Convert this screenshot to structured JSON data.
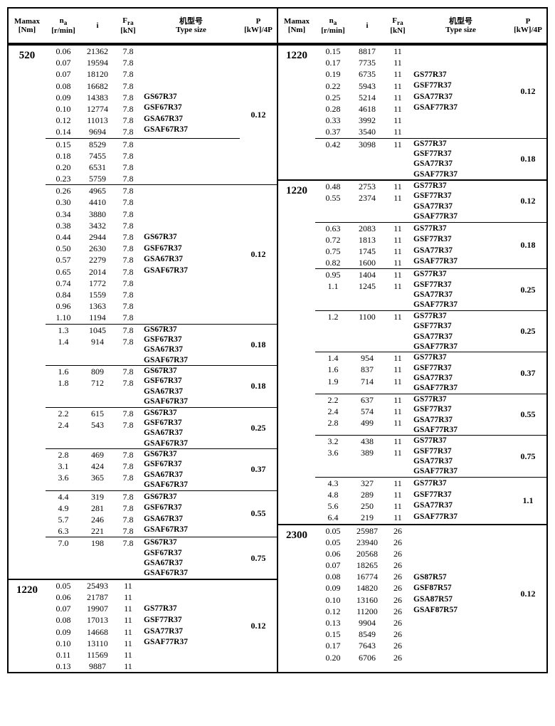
{
  "headers": {
    "mamax_l1": "Mamax",
    "mamax_l2": "[Nm]",
    "na_l1": "n",
    "na_sub": "a",
    "na_l2": "[r/min]",
    "i": "i",
    "fra_l1": "F",
    "fra_sub": "ra",
    "fra_l2": "[kN]",
    "type_l1": "机型号",
    "type_l2": "Type size",
    "p_l1": "P",
    "p_l2": "[kW]/4P"
  },
  "left": [
    {
      "m": "520",
      "secs": [
        {
          "p": "0.12",
          "subs": [
            {
              "types": [
                "",
                "",
                "",
                "",
                "GS67R37",
                "GSF67R37",
                "GSA67R37",
                "GSAF67R37"
              ],
              "type_align": "match",
              "lines": [
                {
                  "n": "0.06",
                  "i": "21362",
                  "f": "7.8"
                },
                {
                  "n": "0.07",
                  "i": "19594",
                  "f": "7.8"
                },
                {
                  "n": "0.07",
                  "i": "18120",
                  "f": "7.8"
                },
                {
                  "n": "0.08",
                  "i": "16682",
                  "f": "7.8"
                },
                {
                  "n": "0.09",
                  "i": "14383",
                  "f": "7.8"
                },
                {
                  "n": "0.10",
                  "i": "12774",
                  "f": "7.8"
                },
                {
                  "n": "0.12",
                  "i": "11013",
                  "f": "7.8"
                },
                {
                  "n": "0.14",
                  "i": "9694",
                  "f": "7.8"
                }
              ]
            },
            {
              "types": [],
              "lines": [
                {
                  "n": "0.15",
                  "i": "8529",
                  "f": "7.8"
                },
                {
                  "n": "0.18",
                  "i": "7455",
                  "f": "7.8"
                },
                {
                  "n": "0.20",
                  "i": "6531",
                  "f": "7.8"
                },
                {
                  "n": "0.23",
                  "i": "5759",
                  "f": "7.8"
                }
              ]
            }
          ]
        },
        {
          "p": "0.12",
          "subs": [
            {
              "types": [
                "",
                "",
                "",
                "",
                "GS67R37",
                "GSF67R37",
                "GSA67R37",
                "GSAF67R37",
                "",
                "",
                "",
                ""
              ],
              "type_align": "match",
              "lines": [
                {
                  "n": "0.26",
                  "i": "4965",
                  "f": "7.8"
                },
                {
                  "n": "0.30",
                  "i": "4410",
                  "f": "7.8"
                },
                {
                  "n": "0.34",
                  "i": "3880",
                  "f": "7.8"
                },
                {
                  "n": "0.38",
                  "i": "3432",
                  "f": "7.8"
                },
                {
                  "n": "0.44",
                  "i": "2944",
                  "f": "7.8"
                },
                {
                  "n": "0.50",
                  "i": "2630",
                  "f": "7.8"
                },
                {
                  "n": "0.57",
                  "i": "2279",
                  "f": "7.8"
                },
                {
                  "n": "0.65",
                  "i": "2014",
                  "f": "7.8"
                },
                {
                  "n": "0.74",
                  "i": "1772",
                  "f": "7.8"
                },
                {
                  "n": "0.84",
                  "i": "1559",
                  "f": "7.8"
                },
                {
                  "n": "0.96",
                  "i": "1363",
                  "f": "7.8"
                },
                {
                  "n": "1.10",
                  "i": "1194",
                  "f": "7.8"
                }
              ]
            }
          ]
        },
        {
          "p": "0.18",
          "subs": [
            {
              "types": [
                "GS67R37",
                "GSF67R37",
                "GSA67R37",
                "GSAF67R37"
              ],
              "lines": [
                {
                  "n": "1.3",
                  "i": "1045",
                  "f": "7.8"
                },
                {
                  "n": "1.4",
                  "i": "914",
                  "f": "7.8"
                }
              ]
            }
          ]
        },
        {
          "p": "0.18",
          "subs": [
            {
              "types": [
                "GS67R37",
                "GSF67R37",
                "GSA67R37",
                "GSAF67R37"
              ],
              "lines": [
                {
                  "n": "1.6",
                  "i": "809",
                  "f": "7.8"
                },
                {
                  "n": "1.8",
                  "i": "712",
                  "f": "7.8"
                }
              ]
            }
          ]
        },
        {
          "p": "0.25",
          "subs": [
            {
              "types": [
                "GS67R37",
                "GSF67R37",
                "GSA67R37",
                "GSAF67R37"
              ],
              "lines": [
                {
                  "n": "2.2",
                  "i": "615",
                  "f": "7.8"
                },
                {
                  "n": "2.4",
                  "i": "543",
                  "f": "7.8"
                }
              ]
            }
          ]
        },
        {
          "p": "0.37",
          "subs": [
            {
              "types": [
                "GS67R37",
                "GSF67R37",
                "GSA67R37",
                "GSAF67R37"
              ],
              "lines": [
                {
                  "n": "2.8",
                  "i": "469",
                  "f": "7.8"
                },
                {
                  "n": "3.1",
                  "i": "424",
                  "f": "7.8"
                },
                {
                  "n": "3.6",
                  "i": "365",
                  "f": "7.8"
                }
              ]
            }
          ]
        },
        {
          "p": "0.55",
          "subs": [
            {
              "types": [
                "GS67R37",
                "GSF67R37",
                "GSA67R37",
                "GSAF67R37"
              ],
              "type_align": "match",
              "lines": [
                {
                  "n": "4.4",
                  "i": "319",
                  "f": "7.8"
                },
                {
                  "n": "4.9",
                  "i": "281",
                  "f": "7.8"
                },
                {
                  "n": "5.7",
                  "i": "246",
                  "f": "7.8"
                },
                {
                  "n": "6.3",
                  "i": "221",
                  "f": "7.8"
                }
              ]
            }
          ]
        },
        {
          "p": "0.75",
          "subs": [
            {
              "types": [
                "GS67R37",
                "GSF67R37",
                "GSA67R37",
                "GSAF67R37"
              ],
              "lines": [
                {
                  "n": "7.0",
                  "i": "198",
                  "f": "7.8"
                }
              ]
            }
          ]
        }
      ]
    },
    {
      "m": "1220",
      "secs": [
        {
          "p": "0.12",
          "subs": [
            {
              "types": [
                "",
                "",
                "GS77R37",
                "GSF77R37",
                "GSA77R37",
                "GSAF77R37",
                "",
                ""
              ],
              "type_align": "match",
              "lines": [
                {
                  "n": "0.05",
                  "i": "25493",
                  "f": "11"
                },
                {
                  "n": "0.06",
                  "i": "21787",
                  "f": "11"
                },
                {
                  "n": "0.07",
                  "i": "19907",
                  "f": "11"
                },
                {
                  "n": "0.08",
                  "i": "17013",
                  "f": "11"
                },
                {
                  "n": "0.09",
                  "i": "14668",
                  "f": "11"
                },
                {
                  "n": "0.10",
                  "i": "13110",
                  "f": "11"
                },
                {
                  "n": "0.11",
                  "i": "11569",
                  "f": "11"
                },
                {
                  "n": "0.13",
                  "i": "9887",
                  "f": "11"
                }
              ]
            }
          ]
        }
      ]
    }
  ],
  "right": [
    {
      "m": "1220",
      "secs": [
        {
          "p": "0.12",
          "subs": [
            {
              "types": [
                "",
                "",
                "GS77R37",
                "GSF77R37",
                "GSA77R37",
                "GSAF77R37",
                "",
                ""
              ],
              "type_align": "match",
              "lines": [
                {
                  "n": "0.15",
                  "i": "8817",
                  "f": "11"
                },
                {
                  "n": "0.17",
                  "i": "7735",
                  "f": "11"
                },
                {
                  "n": "0.19",
                  "i": "6735",
                  "f": "11"
                },
                {
                  "n": "0.22",
                  "i": "5943",
                  "f": "11"
                },
                {
                  "n": "0.25",
                  "i": "5214",
                  "f": "11"
                },
                {
                  "n": "0.28",
                  "i": "4618",
                  "f": "11"
                },
                {
                  "n": "0.33",
                  "i": "3992",
                  "f": "11"
                },
                {
                  "n": "0.37",
                  "i": "3540",
                  "f": "11"
                }
              ]
            }
          ]
        },
        {
          "p": "0.18",
          "subs": [
            {
              "types": [
                "GS77R37",
                "GSF77R37",
                "GSA77R37",
                "GSAF77R37"
              ],
              "lines": [
                {
                  "n": "0.42",
                  "i": "3098",
                  "f": "11"
                }
              ]
            }
          ]
        }
      ]
    },
    {
      "m": "1220",
      "secs": [
        {
          "p": "0.12",
          "subs": [
            {
              "types": [
                "GS77R37",
                "GSF77R37",
                "GSA77R37",
                "GSAF77R37"
              ],
              "lines": [
                {
                  "n": "0.48",
                  "i": "2753",
                  "f": "11"
                },
                {
                  "n": "0.55",
                  "i": "2374",
                  "f": "11"
                }
              ]
            }
          ]
        },
        {
          "p": "0.18",
          "subs": [
            {
              "types": [
                "GS77R37",
                "GSF77R37",
                "GSA77R37",
                "GSAF77R37"
              ],
              "type_align": "match",
              "lines": [
                {
                  "n": "0.63",
                  "i": "2083",
                  "f": "11"
                },
                {
                  "n": "0.72",
                  "i": "1813",
                  "f": "11"
                },
                {
                  "n": "0.75",
                  "i": "1745",
                  "f": "11"
                },
                {
                  "n": "0.82",
                  "i": "1600",
                  "f": "11"
                }
              ]
            }
          ]
        },
        {
          "p": "0.25",
          "subs": [
            {
              "types": [
                "GS77R37",
                "GSF77R37",
                "GSA77R37",
                "GSAF77R37"
              ],
              "lines": [
                {
                  "n": "0.95",
                  "i": "1404",
                  "f": "11"
                },
                {
                  "n": "1.1",
                  "i": "1245",
                  "f": "11"
                }
              ]
            }
          ]
        },
        {
          "p": "0.25",
          "subs": [
            {
              "types": [
                "GS77R37",
                "GSF77R37",
                "GSA77R37",
                "GSAF77R37"
              ],
              "lines": [
                {
                  "n": "1.2",
                  "i": "1100",
                  "f": "11"
                }
              ]
            }
          ]
        },
        {
          "p": "0.37",
          "subs": [
            {
              "types": [
                "GS77R37",
                "GSF77R37",
                "GSA77R37",
                "GSAF77R37"
              ],
              "lines": [
                {
                  "n": "1.4",
                  "i": "954",
                  "f": "11"
                },
                {
                  "n": "1.6",
                  "i": "837",
                  "f": "11"
                },
                {
                  "n": "1.9",
                  "i": "714",
                  "f": "11"
                }
              ]
            }
          ]
        },
        {
          "p": "0.55",
          "subs": [
            {
              "types": [
                "GS77R37",
                "GSF77R37",
                "GSA77R37",
                "GSAF77R37"
              ],
              "lines": [
                {
                  "n": "2.2",
                  "i": "637",
                  "f": "11"
                },
                {
                  "n": "2.4",
                  "i": "574",
                  "f": "11"
                },
                {
                  "n": "2.8",
                  "i": "499",
                  "f": "11"
                }
              ]
            }
          ]
        },
        {
          "p": "0.75",
          "subs": [
            {
              "types": [
                "GS77R37",
                "GSF77R37",
                "GSA77R37",
                "GSAF77R37"
              ],
              "lines": [
                {
                  "n": "3.2",
                  "i": "438",
                  "f": "11"
                },
                {
                  "n": "3.6",
                  "i": "389",
                  "f": "11"
                }
              ]
            }
          ]
        },
        {
          "p": "1.1",
          "subs": [
            {
              "types": [
                "GS77R37",
                "GSF77R37",
                "GSA77R37",
                "GSAF77R37"
              ],
              "type_align": "match",
              "lines": [
                {
                  "n": "4.3",
                  "i": "327",
                  "f": "11"
                },
                {
                  "n": "4.8",
                  "i": "289",
                  "f": "11"
                },
                {
                  "n": "5.6",
                  "i": "250",
                  "f": "11"
                },
                {
                  "n": "6.4",
                  "i": "219",
                  "f": "11"
                }
              ]
            }
          ]
        }
      ]
    },
    {
      "m": "2300",
      "secs": [
        {
          "p": "0.12",
          "subs": [
            {
              "types": [
                "",
                "",
                "",
                "",
                "GS87R57",
                "GSF87R57",
                "GSA87R57",
                "GSAF87R57",
                "",
                "",
                "",
                ""
              ],
              "type_align": "match",
              "lines": [
                {
                  "n": "0.05",
                  "i": "25987",
                  "f": "26"
                },
                {
                  "n": "0.05",
                  "i": "23940",
                  "f": "26"
                },
                {
                  "n": "0.06",
                  "i": "20568",
                  "f": "26"
                },
                {
                  "n": "0.07",
                  "i": "18265",
                  "f": "26"
                },
                {
                  "n": "0.08",
                  "i": "16774",
                  "f": "26"
                },
                {
                  "n": "0.09",
                  "i": "14820",
                  "f": "26"
                },
                {
                  "n": "0.10",
                  "i": "13160",
                  "f": "26"
                },
                {
                  "n": "0.12",
                  "i": "11200",
                  "f": "26"
                },
                {
                  "n": "0.13",
                  "i": "9904",
                  "f": "26"
                },
                {
                  "n": "0.15",
                  "i": "8549",
                  "f": "26"
                },
                {
                  "n": "0.17",
                  "i": "7643",
                  "f": "26"
                },
                {
                  "n": "0.20",
                  "i": "6706",
                  "f": "26"
                }
              ]
            }
          ]
        }
      ]
    }
  ]
}
